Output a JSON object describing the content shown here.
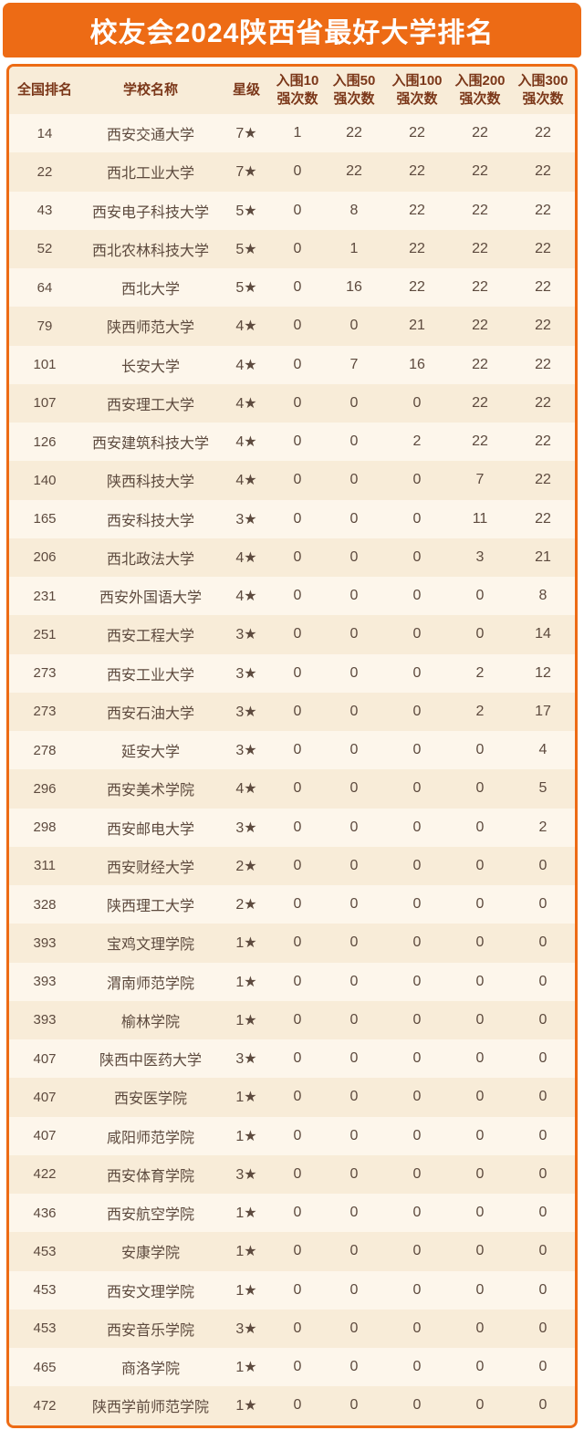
{
  "page": {
    "title": "校友会2024陕西省最好大学排名"
  },
  "colors": {
    "accent_orange": "#ED6B15",
    "banner_text": "#FFFFFF",
    "card_background": "#FBF2E2",
    "row_light": "#FDF6EB",
    "row_dark": "#F8ECD8",
    "header_text": "#7B3719",
    "body_text": "#5D4A3E"
  },
  "table": {
    "columns": [
      "全国排名",
      "学校名称",
      "星级",
      "入围10\n强次数",
      "入围50\n强次数",
      "入围100\n强次数",
      "入围200\n强次数",
      "入围300\n强次数"
    ]
  },
  "chart_data": {
    "type": "table",
    "title": "校友会2024陕西省最好大学排名",
    "columns": [
      "全国排名",
      "学校名称",
      "星级",
      "入围10强次数",
      "入围50强次数",
      "入围100强次数",
      "入围200强次数",
      "入围300强次数"
    ],
    "rows": [
      {
        "rank": 14,
        "name": "西安交通大学",
        "star": "7★",
        "t10": 1,
        "t50": 22,
        "t100": 22,
        "t200": 22,
        "t300": 22
      },
      {
        "rank": 22,
        "name": "西北工业大学",
        "star": "7★",
        "t10": 0,
        "t50": 22,
        "t100": 22,
        "t200": 22,
        "t300": 22
      },
      {
        "rank": 43,
        "name": "西安电子科技大学",
        "star": "5★",
        "t10": 0,
        "t50": 8,
        "t100": 22,
        "t200": 22,
        "t300": 22
      },
      {
        "rank": 52,
        "name": "西北农林科技大学",
        "star": "5★",
        "t10": 0,
        "t50": 1,
        "t100": 22,
        "t200": 22,
        "t300": 22
      },
      {
        "rank": 64,
        "name": "西北大学",
        "star": "5★",
        "t10": 0,
        "t50": 16,
        "t100": 22,
        "t200": 22,
        "t300": 22
      },
      {
        "rank": 79,
        "name": "陕西师范大学",
        "star": "4★",
        "t10": 0,
        "t50": 0,
        "t100": 21,
        "t200": 22,
        "t300": 22
      },
      {
        "rank": 101,
        "name": "长安大学",
        "star": "4★",
        "t10": 0,
        "t50": 7,
        "t100": 16,
        "t200": 22,
        "t300": 22
      },
      {
        "rank": 107,
        "name": "西安理工大学",
        "star": "4★",
        "t10": 0,
        "t50": 0,
        "t100": 0,
        "t200": 22,
        "t300": 22
      },
      {
        "rank": 126,
        "name": "西安建筑科技大学",
        "star": "4★",
        "t10": 0,
        "t50": 0,
        "t100": 2,
        "t200": 22,
        "t300": 22
      },
      {
        "rank": 140,
        "name": "陕西科技大学",
        "star": "4★",
        "t10": 0,
        "t50": 0,
        "t100": 0,
        "t200": 7,
        "t300": 22
      },
      {
        "rank": 165,
        "name": "西安科技大学",
        "star": "3★",
        "t10": 0,
        "t50": 0,
        "t100": 0,
        "t200": 11,
        "t300": 22
      },
      {
        "rank": 206,
        "name": "西北政法大学",
        "star": "4★",
        "t10": 0,
        "t50": 0,
        "t100": 0,
        "t200": 3,
        "t300": 21
      },
      {
        "rank": 231,
        "name": "西安外国语大学",
        "star": "4★",
        "t10": 0,
        "t50": 0,
        "t100": 0,
        "t200": 0,
        "t300": 8
      },
      {
        "rank": 251,
        "name": "西安工程大学",
        "star": "3★",
        "t10": 0,
        "t50": 0,
        "t100": 0,
        "t200": 0,
        "t300": 14
      },
      {
        "rank": 273,
        "name": "西安工业大学",
        "star": "3★",
        "t10": 0,
        "t50": 0,
        "t100": 0,
        "t200": 2,
        "t300": 12
      },
      {
        "rank": 273,
        "name": "西安石油大学",
        "star": "3★",
        "t10": 0,
        "t50": 0,
        "t100": 0,
        "t200": 2,
        "t300": 17
      },
      {
        "rank": 278,
        "name": "延安大学",
        "star": "3★",
        "t10": 0,
        "t50": 0,
        "t100": 0,
        "t200": 0,
        "t300": 4
      },
      {
        "rank": 296,
        "name": "西安美术学院",
        "star": "4★",
        "t10": 0,
        "t50": 0,
        "t100": 0,
        "t200": 0,
        "t300": 5
      },
      {
        "rank": 298,
        "name": "西安邮电大学",
        "star": "3★",
        "t10": 0,
        "t50": 0,
        "t100": 0,
        "t200": 0,
        "t300": 2
      },
      {
        "rank": 311,
        "name": "西安财经大学",
        "star": "2★",
        "t10": 0,
        "t50": 0,
        "t100": 0,
        "t200": 0,
        "t300": 0
      },
      {
        "rank": 328,
        "name": "陕西理工大学",
        "star": "2★",
        "t10": 0,
        "t50": 0,
        "t100": 0,
        "t200": 0,
        "t300": 0
      },
      {
        "rank": 393,
        "name": "宝鸡文理学院",
        "star": "1★",
        "t10": 0,
        "t50": 0,
        "t100": 0,
        "t200": 0,
        "t300": 0
      },
      {
        "rank": 393,
        "name": "渭南师范学院",
        "star": "1★",
        "t10": 0,
        "t50": 0,
        "t100": 0,
        "t200": 0,
        "t300": 0
      },
      {
        "rank": 393,
        "name": "榆林学院",
        "star": "1★",
        "t10": 0,
        "t50": 0,
        "t100": 0,
        "t200": 0,
        "t300": 0
      },
      {
        "rank": 407,
        "name": "陕西中医药大学",
        "star": "3★",
        "t10": 0,
        "t50": 0,
        "t100": 0,
        "t200": 0,
        "t300": 0
      },
      {
        "rank": 407,
        "name": "西安医学院",
        "star": "1★",
        "t10": 0,
        "t50": 0,
        "t100": 0,
        "t200": 0,
        "t300": 0
      },
      {
        "rank": 407,
        "name": "咸阳师范学院",
        "star": "1★",
        "t10": 0,
        "t50": 0,
        "t100": 0,
        "t200": 0,
        "t300": 0
      },
      {
        "rank": 422,
        "name": "西安体育学院",
        "star": "3★",
        "t10": 0,
        "t50": 0,
        "t100": 0,
        "t200": 0,
        "t300": 0
      },
      {
        "rank": 436,
        "name": "西安航空学院",
        "star": "1★",
        "t10": 0,
        "t50": 0,
        "t100": 0,
        "t200": 0,
        "t300": 0
      },
      {
        "rank": 453,
        "name": "安康学院",
        "star": "1★",
        "t10": 0,
        "t50": 0,
        "t100": 0,
        "t200": 0,
        "t300": 0
      },
      {
        "rank": 453,
        "name": "西安文理学院",
        "star": "1★",
        "t10": 0,
        "t50": 0,
        "t100": 0,
        "t200": 0,
        "t300": 0
      },
      {
        "rank": 453,
        "name": "西安音乐学院",
        "star": "3★",
        "t10": 0,
        "t50": 0,
        "t100": 0,
        "t200": 0,
        "t300": 0
      },
      {
        "rank": 465,
        "name": "商洛学院",
        "star": "1★",
        "t10": 0,
        "t50": 0,
        "t100": 0,
        "t200": 0,
        "t300": 0
      },
      {
        "rank": 472,
        "name": "陕西学前师范学院",
        "star": "1★",
        "t10": 0,
        "t50": 0,
        "t100": 0,
        "t200": 0,
        "t300": 0
      }
    ]
  }
}
